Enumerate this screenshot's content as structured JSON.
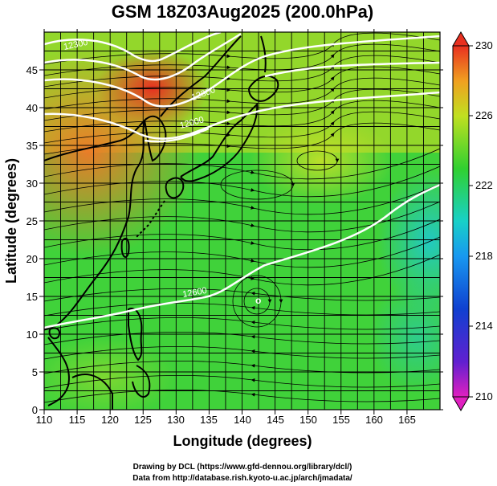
{
  "title": "GSM 18Z03Aug2025 (200.0hPa)",
  "xlabel": "Longitude (degrees)",
  "ylabel": "Latitude  (degrees)",
  "x_ticks": [
    "110",
    "115",
    "120",
    "125",
    "130",
    "135",
    "140",
    "145",
    "150",
    "155",
    "160",
    "165"
  ],
  "y_ticks": [
    "0",
    "5",
    "10",
    "15",
    "20",
    "25",
    "30",
    "35",
    "40",
    "45"
  ],
  "colorbar_ticks": [
    "230",
    "226",
    "222",
    "218",
    "214",
    "210"
  ],
  "credit_line1": "Drawing by DCL (https://www.gfd-dennou.org/library/dcl/)",
  "credit_line2": "Data from http://database.rish.kyoto-u.ac.jp/arch/jmadata/",
  "contour_labels": [
    "12300",
    "12000",
    "12300",
    "12600"
  ],
  "center_label": "o",
  "colors": {
    "max": "#e83020",
    "high": "#f0a020",
    "mid": "#3cd23c",
    "low": "#18c8c8",
    "cold": "#1878e0",
    "min": "#e020c0"
  },
  "chart_data": {
    "type": "heatmap",
    "xlim": [
      110,
      170
    ],
    "ylim": [
      0,
      50
    ],
    "colorbar_range": [
      210,
      230
    ],
    "grid": true
  }
}
